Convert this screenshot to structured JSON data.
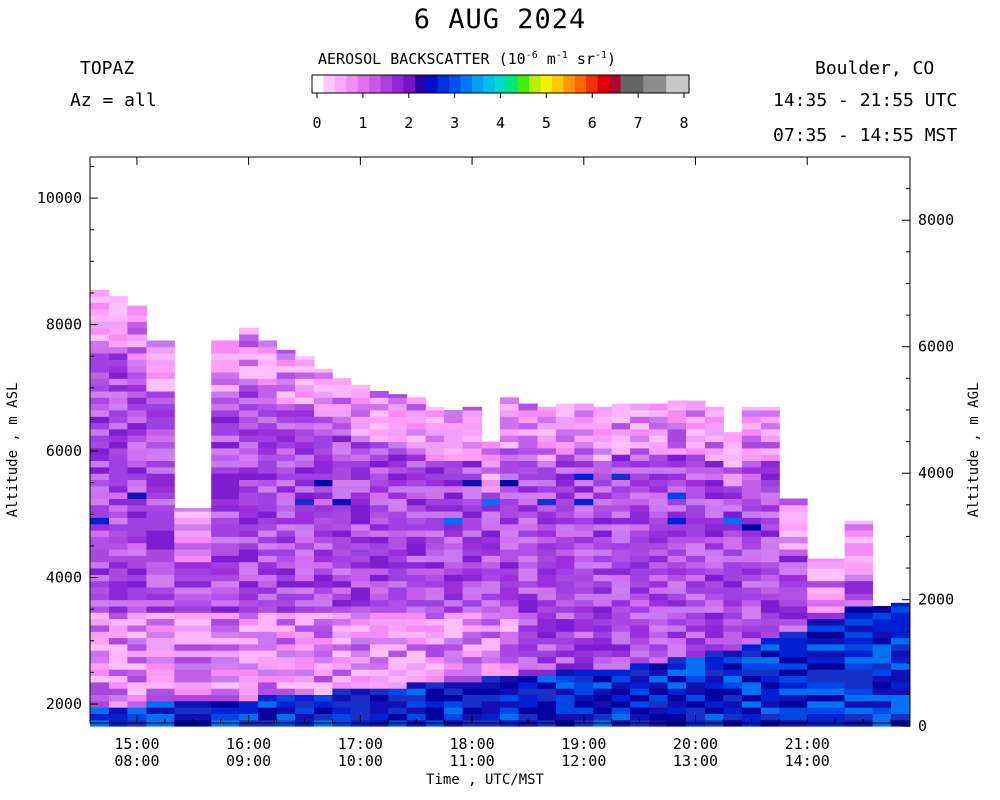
{
  "header": {
    "title": "6 AUG 2024",
    "instrument": "TOPAZ",
    "azimuth": "Az = all",
    "location": "Boulder, CO",
    "utc_range": "14:35 - 21:55 UTC",
    "mst_range": "07:35 - 14:55 MST"
  },
  "colorbar": {
    "title_prefix": "AEROSOL BACKSCATTER (10",
    "exp1": "-6",
    "mid1": " m",
    "exp2": "-1",
    "mid2": " sr",
    "exp3": "-1",
    "suffix": ")",
    "tick_labels": [
      "0",
      "1",
      "2",
      "3",
      "4",
      "5",
      "6",
      "7",
      "8"
    ],
    "colors": [
      "#ffffff",
      "#ffc8ff",
      "#ffaaff",
      "#f28cf5",
      "#e070ee",
      "#cc55e6",
      "#b040dc",
      "#9525d2",
      "#7a12c8",
      "#2a00a8",
      "#0010c8",
      "#0032dc",
      "#0050ee",
      "#0078f5",
      "#00a0f5",
      "#00c0e6",
      "#00d8c8",
      "#00e678",
      "#40f000",
      "#b4f000",
      "#f0f000",
      "#ffc800",
      "#ff9600",
      "#ff6400",
      "#f03200",
      "#dc0000",
      "#b40032",
      "#646464",
      "#646464",
      "#8c8c8c",
      "#8c8c8c",
      "#c8c8c8",
      "#c8c8c8"
    ],
    "range": [
      0,
      8
    ]
  },
  "chart_data": {
    "type": "heatmap",
    "title": "6 AUG 2024",
    "xlabel": "Time , UTC/MST",
    "ylabel_left": "Altitude , m ASL",
    "ylabel_right": "Altitude , m AGL",
    "x_tick_utc": [
      "15:00",
      "16:00",
      "17:00",
      "18:00",
      "19:00",
      "20:00",
      "21:00"
    ],
    "x_tick_mst": [
      "08:00",
      "09:00",
      "10:00",
      "11:00",
      "12:00",
      "13:00",
      "14:00"
    ],
    "x_tick_hours": [
      15,
      16,
      17,
      18,
      19,
      20,
      21
    ],
    "xlim_hours": [
      14.58,
      21.92
    ],
    "y_left_ticks": [
      2000,
      4000,
      6000,
      8000,
      10000
    ],
    "y_left_tick_labels": [
      "2000",
      "4000",
      "6000",
      "8000",
      "10000"
    ],
    "ylim_asl": [
      1700,
      10650
    ],
    "y_right_ticks": [
      0,
      2000,
      4000,
      6000,
      8000
    ],
    "y_right_tick_labels": [
      "0",
      "2000",
      "4000",
      "6000",
      "8000"
    ],
    "ground_altitude_asl": 1650,
    "value_units": "10^-6 m^-1 sr^-1",
    "profiles": [
      {
        "time": 14.67,
        "top": 8550,
        "blue_top": 1950
      },
      {
        "time": 14.83,
        "top": 8450,
        "blue_top": 1950
      },
      {
        "time": 15.0,
        "top": 8300,
        "blue_top": 1950
      },
      {
        "time": 15.17,
        "top": 7750,
        "blue_top": 2000
      },
      {
        "time": 15.5,
        "top": 5100,
        "blue_top": 2000
      },
      {
        "time": 15.83,
        "top": 7750,
        "blue_top": 2050
      },
      {
        "time": 16.0,
        "top": 7950,
        "blue_top": 2050
      },
      {
        "time": 16.17,
        "top": 7750,
        "blue_top": 2100
      },
      {
        "time": 16.33,
        "top": 7600,
        "blue_top": 2100
      },
      {
        "time": 16.5,
        "top": 7500,
        "blue_top": 2150
      },
      {
        "time": 16.67,
        "top": 7300,
        "blue_top": 2150
      },
      {
        "time": 16.83,
        "top": 7150,
        "blue_top": 2200
      },
      {
        "time": 17.0,
        "top": 7050,
        "blue_top": 2200
      },
      {
        "time": 17.17,
        "top": 6950,
        "blue_top": 2250
      },
      {
        "time": 17.33,
        "top": 6900,
        "blue_top": 2250
      },
      {
        "time": 17.5,
        "top": 6850,
        "blue_top": 2300
      },
      {
        "time": 17.67,
        "top": 6700,
        "blue_top": 2300
      },
      {
        "time": 17.83,
        "top": 6650,
        "blue_top": 2350
      },
      {
        "time": 18.0,
        "top": 6700,
        "blue_top": 2350
      },
      {
        "time": 18.17,
        "top": 6150,
        "blue_top": 2400
      },
      {
        "time": 18.33,
        "top": 6850,
        "blue_top": 2400
      },
      {
        "time": 18.5,
        "top": 6750,
        "blue_top": 2450
      },
      {
        "time": 18.67,
        "top": 6700,
        "blue_top": 2450
      },
      {
        "time": 18.83,
        "top": 6750,
        "blue_top": 2500
      },
      {
        "time": 19.0,
        "top": 6750,
        "blue_top": 2500
      },
      {
        "time": 19.17,
        "top": 6700,
        "blue_top": 2550
      },
      {
        "time": 19.33,
        "top": 6750,
        "blue_top": 2550
      },
      {
        "time": 19.5,
        "top": 6750,
        "blue_top": 2600
      },
      {
        "time": 19.67,
        "top": 6750,
        "blue_top": 2650
      },
      {
        "time": 19.83,
        "top": 6800,
        "blue_top": 2700
      },
      {
        "time": 20.0,
        "top": 6800,
        "blue_top": 2750
      },
      {
        "time": 20.17,
        "top": 6700,
        "blue_top": 2800
      },
      {
        "time": 20.33,
        "top": 6300,
        "blue_top": 2850
      },
      {
        "time": 20.5,
        "top": 6700,
        "blue_top": 2900
      },
      {
        "time": 20.67,
        "top": 6700,
        "blue_top": 3000
      },
      {
        "time": 20.83,
        "top": 5250,
        "blue_top": 3150
      },
      {
        "time": 21.17,
        "top": 4300,
        "blue_top": 3300
      },
      {
        "time": 21.5,
        "top": 4900,
        "blue_top": 3500
      },
      {
        "time": 21.67,
        "top": 3550,
        "blue_top": 3550
      },
      {
        "time": 21.83,
        "top": 3600,
        "blue_top": 3600
      }
    ]
  }
}
